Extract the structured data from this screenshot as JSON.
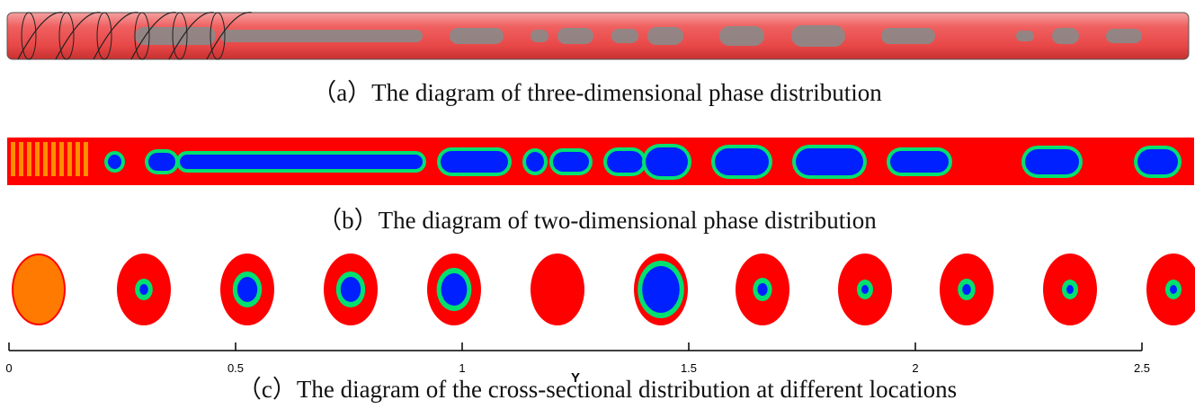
{
  "panels": [
    {
      "caption": "（a）The diagram of three-dimensional phase distribution"
    },
    {
      "caption": "（b）The diagram of two-dimensional phase distribution"
    },
    {
      "caption": "（c）The diagram of the cross-sectional distribution at different locations",
      "axis": {
        "label": "Y",
        "xlim": [
          0,
          2.5
        ],
        "xticks": [
          0,
          0.5,
          1,
          1.5,
          2,
          2.5
        ]
      }
    }
  ]
}
